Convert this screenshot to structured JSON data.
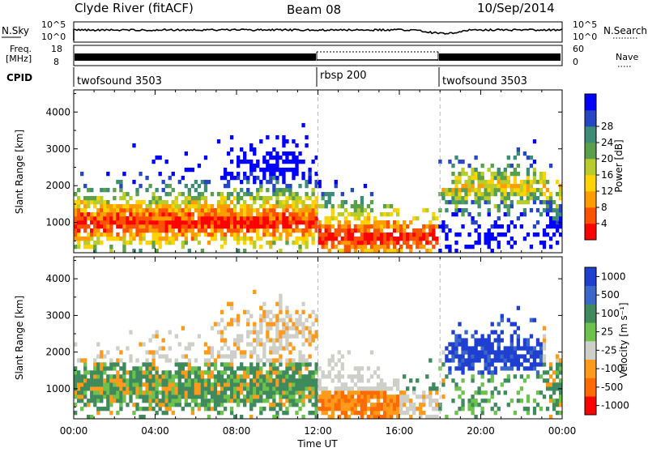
{
  "header": {
    "site": "Clyde River (fitACF)",
    "beam": "Beam 08",
    "date": "10/Sep/2014"
  },
  "noise_panel": {
    "left_label": "N.Sky",
    "right_label": "N.Search",
    "left_ticks": [
      "10^5",
      "10^0"
    ],
    "right_ticks": [
      "10^5",
      "10^0"
    ]
  },
  "freq_panel": {
    "left_label_1": "Freq.",
    "left_label_2": "[MHz]",
    "left_ticks": [
      "18",
      "8"
    ],
    "right_label": "Nave",
    "right_ticks": [
      "60",
      "0"
    ]
  },
  "cpid": {
    "label": "CPID",
    "segments": [
      {
        "name": "twofsound 3503",
        "start_h": 0
      },
      {
        "name": "rbsp 200",
        "start_h": 12
      },
      {
        "name": "twofsound 3503",
        "start_h": 18
      }
    ]
  },
  "chart_data": [
    {
      "type": "heatmap",
      "title": "",
      "xlabel": "",
      "ylabel": "Slant Range [km]",
      "xlim_hours": [
        0,
        24
      ],
      "ylim": [
        180,
        4600
      ],
      "y_ticks": [
        1000,
        2000,
        3000,
        4000
      ],
      "colorbar_label": "Power [dB]",
      "colorbar_ticks": [
        "4",
        "8",
        "12",
        "16",
        "20",
        "24",
        "28"
      ],
      "colorbar_colors": [
        "#0000ff",
        "#2747c2",
        "#3d8c76",
        "#5a9f4b",
        "#b8cc2b",
        "#ffd300",
        "#ff9c00",
        "#ff5200",
        "#ff0000"
      ],
      "vertical_markers_h": [
        12,
        18
      ]
    },
    {
      "type": "heatmap",
      "title": "",
      "xlabel": "Time UT",
      "ylabel": "Slant Range [km]",
      "xlim_hours": [
        0,
        24
      ],
      "ylim": [
        180,
        4600
      ],
      "y_ticks": [
        1000,
        2000,
        3000,
        4000
      ],
      "x_ticks": [
        "00:00",
        "04:00",
        "08:00",
        "12:00",
        "16:00",
        "20:00",
        "00:00"
      ],
      "colorbar_label": "Velocity [m s⁻¹]",
      "colorbar_ticks": [
        "1000",
        "500",
        "100",
        "25",
        "-25",
        "-100",
        "-500",
        "-1000"
      ],
      "colorbar_colors": [
        "#1f3fd0",
        "#3a68c8",
        "#3f8a5d",
        "#6cc24a",
        "#cfcfc9",
        "#ff9a1a",
        "#ff6a00",
        "#ff0000"
      ],
      "vertical_markers_h": [
        12,
        18
      ]
    }
  ]
}
